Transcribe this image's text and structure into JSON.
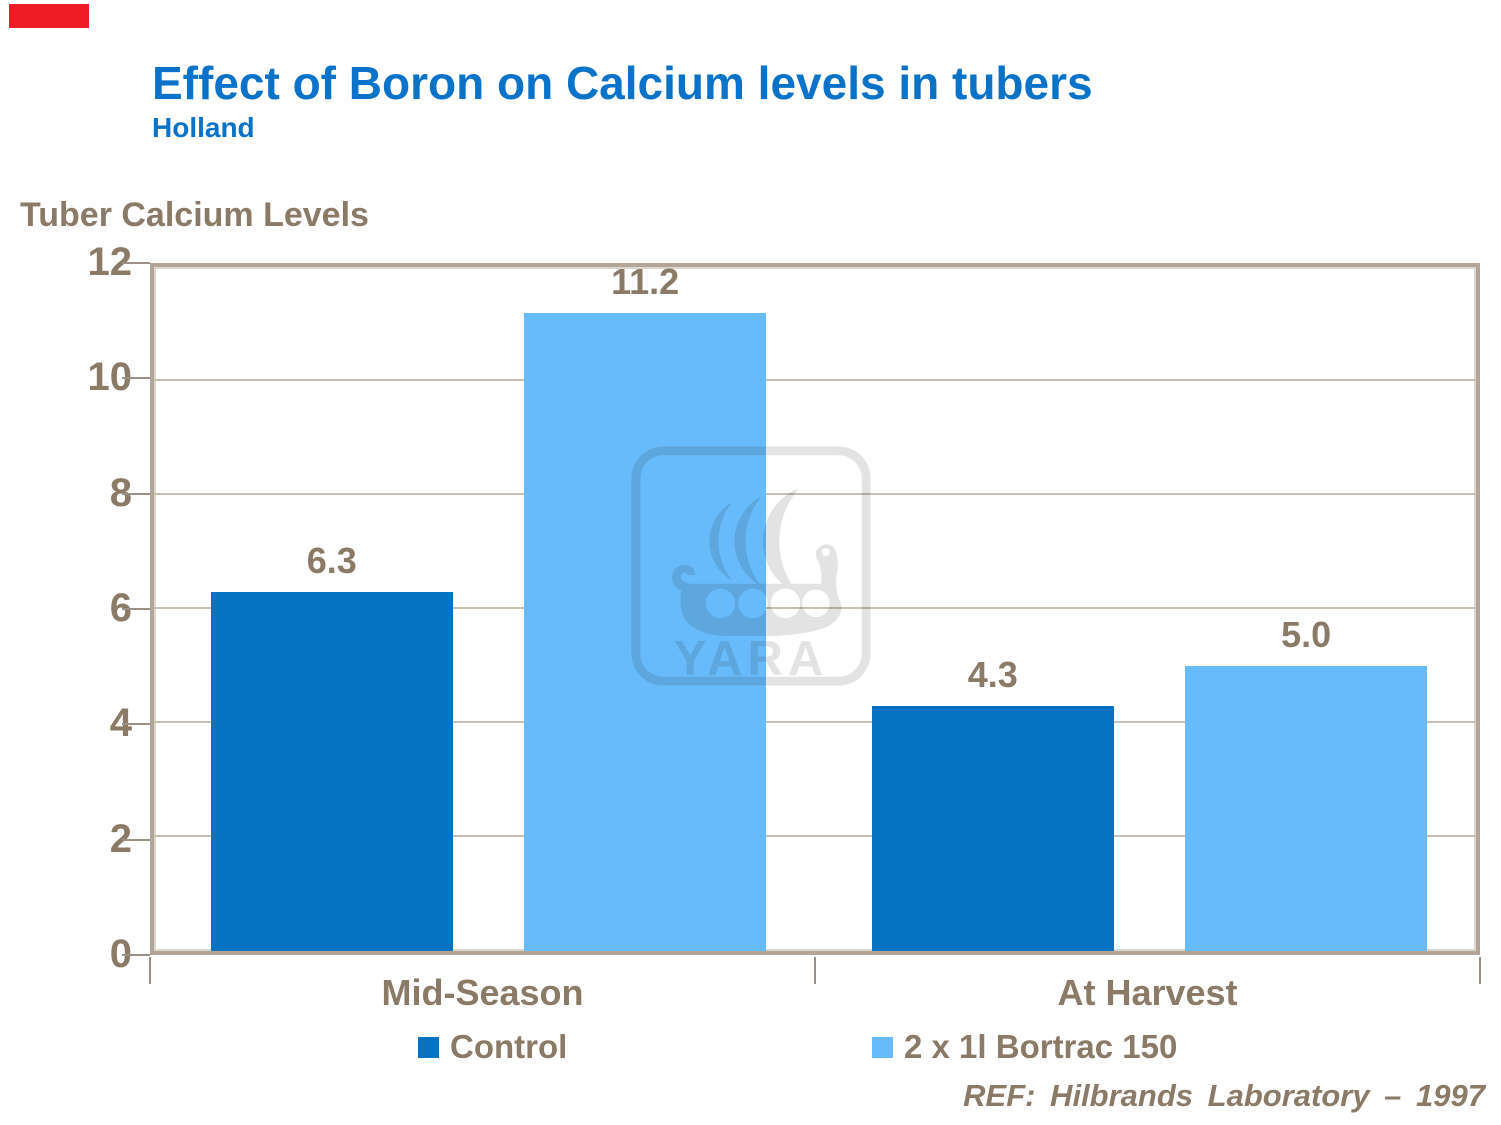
{
  "theme": {
    "title_blue": "#0a72c8",
    "text_brown": "#8a7a66",
    "border_tan": "#b2a496",
    "grid_tan": "#c9bfb2",
    "tick_gray": "#9a9086",
    "watermark_gray": "#e3e3e3",
    "accent_red": "#ee1c24"
  },
  "header": {
    "title": "Effect of Boron on Calcium levels in tubers",
    "subtitle": "Holland"
  },
  "chart_data": {
    "type": "bar",
    "title": "Effect of Boron on Calcium levels in tubers — Holland",
    "axis_title": "Tuber Calcium Levels",
    "categories": [
      "Mid-Season",
      "At Harvest"
    ],
    "series": [
      {
        "name": "Control",
        "color": "#0672c2",
        "values": [
          6.3,
          4.3
        ],
        "labels": [
          "6.3",
          "4.3"
        ]
      },
      {
        "name": "2 x 1l Bortrac 150",
        "color": "#68bbfa",
        "values": [
          11.2,
          5.0
        ],
        "labels": [
          "11.2",
          "5.0"
        ]
      }
    ],
    "ylim": [
      0,
      12
    ],
    "yticks": [
      0,
      2,
      4,
      6,
      8,
      10,
      12
    ],
    "grid": true,
    "legend_position": "bottom"
  },
  "watermark": {
    "text": "YARA"
  },
  "footer": {
    "ref": "REF: Hilbrands Laboratory – 1997"
  }
}
